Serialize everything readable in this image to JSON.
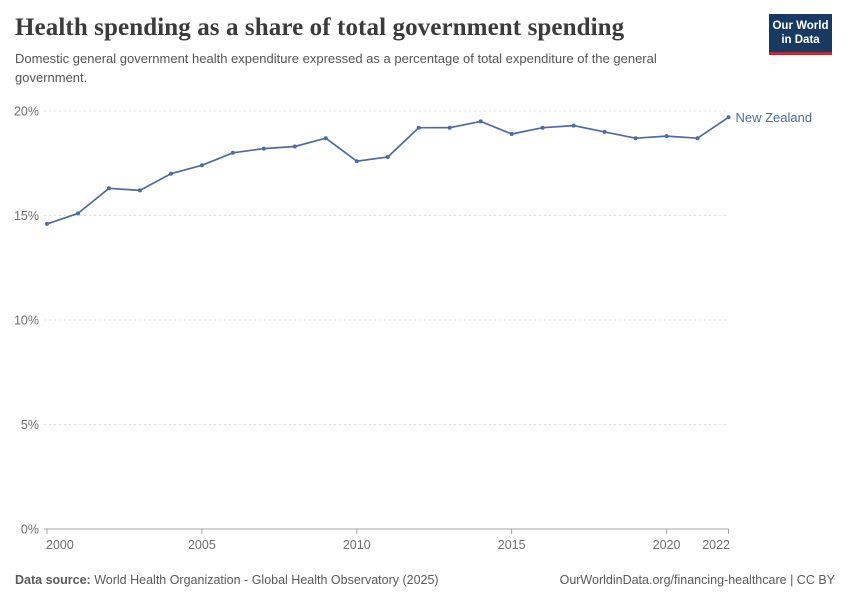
{
  "header": {
    "title": "Health spending as a share of total government spending",
    "subtitle": "Domestic general government health expenditure expressed as a percentage of total expenditure of the general government."
  },
  "logo": {
    "line1": "Our World",
    "line2": "in Data",
    "bg_color": "#183a62",
    "stripe_color": "#be2a33"
  },
  "chart_data": {
    "type": "line",
    "title": "Health spending as a share of total government spending",
    "xlabel": "",
    "ylabel": "",
    "ylim": [
      0,
      20
    ],
    "yticks": [
      0,
      5,
      10,
      15,
      20
    ],
    "ytick_labels": [
      "0%",
      "5%",
      "10%",
      "15%",
      "20%"
    ],
    "xticks": [
      2000,
      2005,
      2010,
      2015,
      2020,
      2022
    ],
    "grid": "horizontal dashed",
    "legend_position": "end-of-line label",
    "series": [
      {
        "name": "New Zealand",
        "color": "#4c6ba3",
        "x": [
          2000,
          2001,
          2002,
          2003,
          2004,
          2005,
          2006,
          2007,
          2008,
          2009,
          2010,
          2011,
          2012,
          2013,
          2014,
          2015,
          2016,
          2017,
          2018,
          2019,
          2020,
          2021,
          2022
        ],
        "values": [
          14.6,
          15.1,
          16.3,
          16.2,
          17.0,
          17.4,
          18.0,
          18.2,
          18.3,
          18.7,
          17.6,
          17.8,
          19.2,
          19.2,
          19.5,
          18.9,
          19.2,
          19.3,
          19.0,
          18.7,
          18.8,
          18.7,
          19.7
        ]
      }
    ]
  },
  "footer": {
    "source_label": "Data source:",
    "source_text": "World Health Organization - Global Health Observatory (2025)",
    "url": "OurWorldinData.org/financing-healthcare",
    "divider": "|",
    "license": "CC BY"
  },
  "colors": {
    "line": "#4c6ba3",
    "grid": "#dddddd",
    "axis": "#a5a5a5",
    "tick_label": "#6e6e6e",
    "title": "#3b3b3b",
    "subtitle": "#555555",
    "footer": "#5b5b5b"
  }
}
